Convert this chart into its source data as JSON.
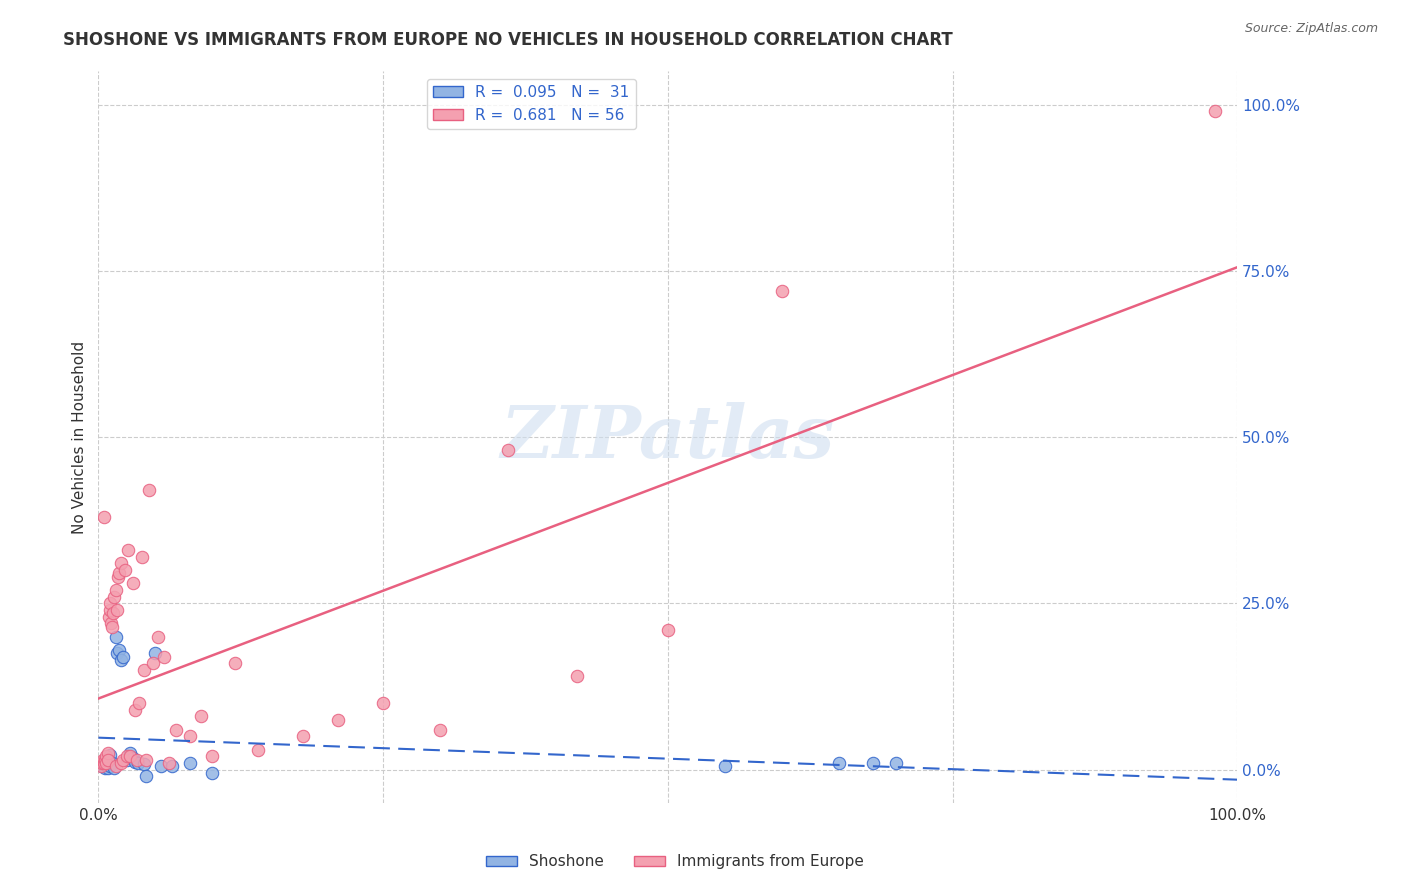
{
  "title": "SHOSHONE VS IMMIGRANTS FROM EUROPE NO VEHICLES IN HOUSEHOLD CORRELATION CHART",
  "source": "Source: ZipAtlas.com",
  "ylabel": "No Vehicles in Household",
  "xlabel": "",
  "xlim": [
    0,
    1.0
  ],
  "ylim": [
    -0.05,
    1.05
  ],
  "xtick_labels": [
    "0.0%",
    "100.0%"
  ],
  "ytick_labels": [
    "0.0%",
    "25.0%",
    "50.0%",
    "75.0%",
    "100.0%"
  ],
  "ytick_positions": [
    0.0,
    0.25,
    0.5,
    0.75,
    1.0
  ],
  "grid_color": "#cccccc",
  "background_color": "#ffffff",
  "shoshone_color": "#92b4e3",
  "europe_color": "#f4a0b0",
  "shoshone_line_color": "#3366cc",
  "europe_line_color": "#e86080",
  "watermark_text": "ZIPatlas",
  "legend_shoshone_label": "R =  0.095   N =  31",
  "legend_europe_label": "R =  0.681   N = 56",
  "shoshone_R": 0.095,
  "shoshone_N": 31,
  "europe_R": 0.681,
  "europe_N": 56,
  "shoshone_x": [
    0.003,
    0.005,
    0.006,
    0.007,
    0.008,
    0.009,
    0.01,
    0.01,
    0.012,
    0.014,
    0.015,
    0.016,
    0.018,
    0.02,
    0.022,
    0.025,
    0.028,
    0.03,
    0.032,
    0.035,
    0.04,
    0.042,
    0.05,
    0.055,
    0.065,
    0.08,
    0.1,
    0.55,
    0.65,
    0.68,
    0.7
  ],
  "shoshone_y": [
    0.005,
    0.01,
    0.002,
    0.008,
    0.003,
    0.015,
    0.005,
    0.022,
    0.01,
    0.003,
    0.2,
    0.175,
    0.18,
    0.165,
    0.17,
    0.015,
    0.025,
    0.018,
    0.012,
    0.01,
    0.008,
    -0.01,
    0.175,
    0.005,
    0.005,
    0.01,
    -0.005,
    0.005,
    0.01,
    0.01,
    0.01
  ],
  "europe_x": [
    0.002,
    0.003,
    0.004,
    0.005,
    0.005,
    0.006,
    0.007,
    0.007,
    0.008,
    0.008,
    0.009,
    0.01,
    0.01,
    0.011,
    0.012,
    0.013,
    0.014,
    0.015,
    0.015,
    0.016,
    0.017,
    0.018,
    0.02,
    0.02,
    0.022,
    0.023,
    0.025,
    0.026,
    0.028,
    0.03,
    0.032,
    0.034,
    0.036,
    0.038,
    0.04,
    0.042,
    0.044,
    0.048,
    0.052,
    0.058,
    0.062,
    0.068,
    0.08,
    0.09,
    0.1,
    0.12,
    0.14,
    0.18,
    0.21,
    0.25,
    0.3,
    0.36,
    0.42,
    0.5,
    0.6,
    0.98
  ],
  "europe_y": [
    0.005,
    0.01,
    0.015,
    0.01,
    0.38,
    0.015,
    0.02,
    0.01,
    0.025,
    0.015,
    0.23,
    0.24,
    0.25,
    0.22,
    0.215,
    0.235,
    0.26,
    0.27,
    0.005,
    0.24,
    0.29,
    0.295,
    0.31,
    0.01,
    0.015,
    0.3,
    0.02,
    0.33,
    0.02,
    0.28,
    0.09,
    0.015,
    0.1,
    0.32,
    0.15,
    0.015,
    0.42,
    0.16,
    0.2,
    0.17,
    0.01,
    0.06,
    0.05,
    0.08,
    0.02,
    0.16,
    0.03,
    0.05,
    0.075,
    0.1,
    0.06,
    0.48,
    0.14,
    0.21,
    0.72,
    0.99
  ]
}
